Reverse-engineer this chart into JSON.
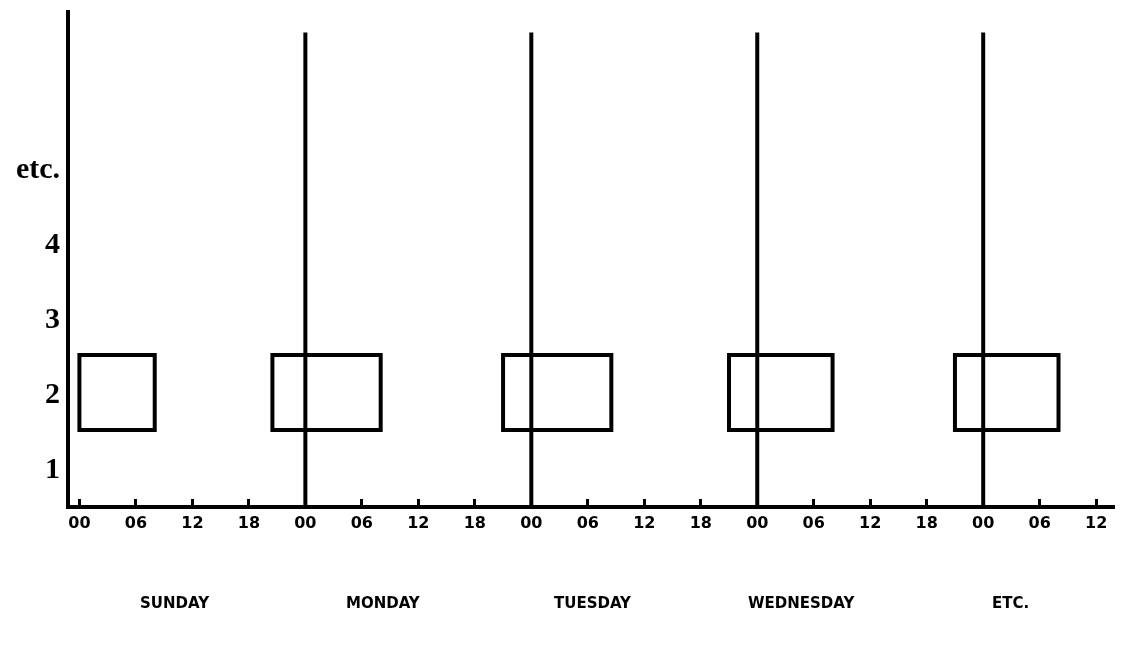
{
  "chart_data": {
    "type": "bar",
    "orientation": "horizontal",
    "categories": [
      "etc.",
      "4",
      "3",
      "2",
      "1"
    ],
    "series": [
      {
        "color": "#000000",
        "values": [
          null,
          null,
          null,
          8,
          null
        ],
        "base": [
          null,
          null,
          null,
          0,
          null
        ]
      },
      {
        "color": "#000000",
        "values": [
          null,
          null,
          null,
          11.5,
          null
        ],
        "base": [
          null,
          null,
          null,
          20.5,
          null
        ]
      },
      {
        "color": "#000000",
        "values": [
          null,
          null,
          null,
          11.5,
          null
        ],
        "base": [
          null,
          null,
          null,
          45,
          null
        ]
      },
      {
        "color": "#000000",
        "values": [
          null,
          null,
          null,
          11,
          null
        ],
        "base": [
          null,
          null,
          null,
          69,
          null
        ]
      },
      {
        "color": "#000000",
        "values": [
          null,
          null,
          null,
          11,
          null
        ],
        "base": [
          null,
          null,
          null,
          93,
          null
        ]
      }
    ],
    "xlim": [
      -1,
      110
    ],
    "xticks": [
      {
        "value": 0,
        "label": "00"
      },
      {
        "value": 6,
        "label": "06"
      },
      12,
      18,
      {
        "value": 24,
        "label": "00"
      },
      {
        "value": 30,
        "label": "06"
      },
      {
        "value": 36,
        "label": "12"
      },
      {
        "value": 42,
        "label": "18"
      },
      {
        "value": 48,
        "label": "00"
      },
      {
        "value": 54,
        "label": "06"
      },
      {
        "value": 60,
        "label": "12"
      },
      {
        "value": 66,
        "label": "18"
      },
      {
        "value": 72,
        "label": "00"
      },
      {
        "value": 78,
        "label": "06"
      },
      {
        "value": 84,
        "label": "12"
      },
      {
        "value": 90,
        "label": "18"
      },
      {
        "value": 96,
        "label": "00"
      },
      {
        "value": 102,
        "label": "06"
      },
      {
        "value": 108,
        "label": "12"
      }
    ],
    "ref_lines": [
      {
        "axis": "x",
        "value": 24,
        "color": "#000000"
      },
      {
        "axis": "x",
        "value": 48,
        "color": "#000000"
      },
      {
        "axis": "x",
        "value": 72,
        "color": "#000000"
      },
      {
        "axis": "x",
        "value": 96,
        "color": "#000000"
      }
    ],
    "annotations": [
      "SUNDAY",
      "MONDAY",
      "TUESDAY",
      "WEDNESDAY",
      "ETC."
    ],
    "tick_labels": "xy"
  }
}
